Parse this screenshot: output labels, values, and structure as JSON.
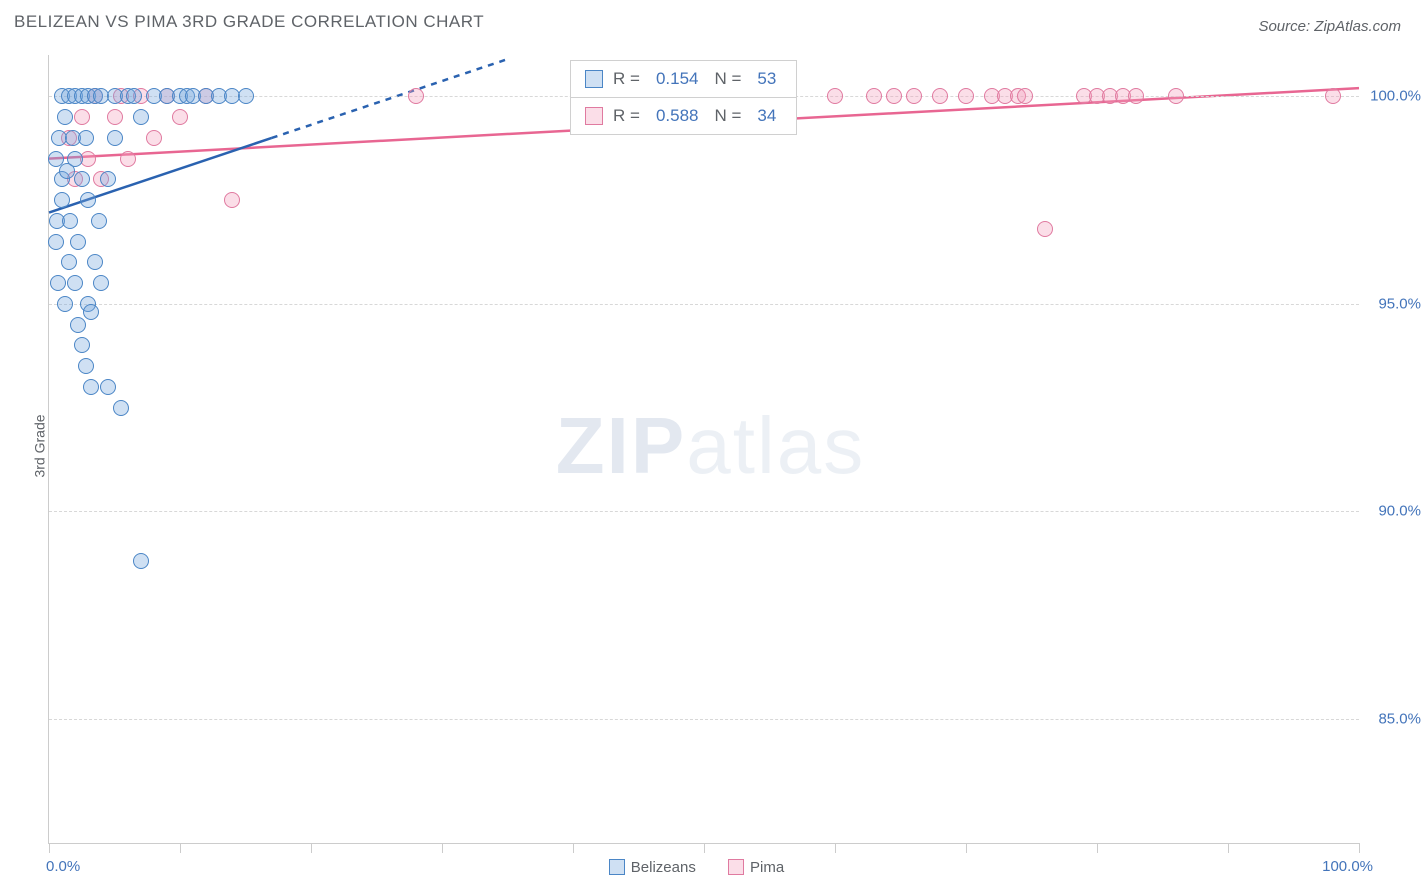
{
  "title": "BELIZEAN VS PIMA 3RD GRADE CORRELATION CHART",
  "source": "Source: ZipAtlas.com",
  "ylabel": "3rd Grade",
  "watermark_bold": "ZIP",
  "watermark_light": "atlas",
  "colors": {
    "blue_fill": "rgba(117,165,222,0.35)",
    "blue_stroke": "#4b86c6",
    "blue_line": "#2a62b0",
    "pink_fill": "rgba(244,160,188,0.35)",
    "pink_stroke": "#e07aa0",
    "pink_line": "#e86692",
    "grid": "#d8d8d8",
    "text": "#5f6368",
    "axis_label": "#4374ba"
  },
  "chart": {
    "type": "scatter",
    "xlim": [
      0,
      100
    ],
    "ylim": [
      82,
      101
    ],
    "xtick_step": 10,
    "xtick_labels": {
      "0": "0.0%",
      "100": "100.0%"
    },
    "ytick_values": [
      85,
      90,
      95,
      100
    ],
    "ytick_labels": [
      "85.0%",
      "90.0%",
      "95.0%",
      "100.0%"
    ],
    "marker_radius": 8
  },
  "series_blue": {
    "name": "Belizeans",
    "R": "0.154",
    "N": "53",
    "regression_solid": {
      "x1": 0,
      "y1": 97.2,
      "x2": 17,
      "y2": 99.0
    },
    "regression_dashed": {
      "x1": 17,
      "y1": 99.0,
      "x2": 35,
      "y2": 100.9
    },
    "points": [
      [
        0.5,
        98.5
      ],
      [
        0.5,
        96.5
      ],
      [
        0.6,
        97.0
      ],
      [
        0.7,
        95.5
      ],
      [
        0.8,
        99.0
      ],
      [
        1.0,
        100.0
      ],
      [
        1.0,
        98.0
      ],
      [
        1.0,
        97.5
      ],
      [
        1.2,
        99.5
      ],
      [
        1.2,
        95.0
      ],
      [
        1.4,
        98.2
      ],
      [
        1.5,
        100.0
      ],
      [
        1.5,
        96.0
      ],
      [
        1.6,
        97.0
      ],
      [
        1.8,
        99.0
      ],
      [
        2.0,
        100.0
      ],
      [
        2.0,
        98.5
      ],
      [
        2.0,
        95.5
      ],
      [
        2.2,
        96.5
      ],
      [
        2.2,
        94.5
      ],
      [
        2.5,
        98.0
      ],
      [
        2.5,
        100.0
      ],
      [
        2.5,
        94.0
      ],
      [
        2.8,
        99.0
      ],
      [
        2.8,
        93.5
      ],
      [
        3.0,
        100.0
      ],
      [
        3.0,
        97.5
      ],
      [
        3.0,
        95.0
      ],
      [
        3.2,
        94.8
      ],
      [
        3.2,
        93.0
      ],
      [
        3.5,
        100.0
      ],
      [
        3.5,
        96.0
      ],
      [
        3.8,
        97.0
      ],
      [
        4.0,
        100.0
      ],
      [
        4.0,
        95.5
      ],
      [
        4.5,
        98.0
      ],
      [
        4.5,
        93.0
      ],
      [
        5.0,
        99.0
      ],
      [
        5.0,
        100.0
      ],
      [
        5.5,
        92.5
      ],
      [
        6.0,
        100.0
      ],
      [
        6.5,
        100.0
      ],
      [
        7.0,
        99.5
      ],
      [
        7.0,
        88.8
      ],
      [
        8.0,
        100.0
      ],
      [
        9.0,
        100.0
      ],
      [
        10.0,
        100.0
      ],
      [
        10.5,
        100.0
      ],
      [
        11.0,
        100.0
      ],
      [
        12.0,
        100.0
      ],
      [
        13.0,
        100.0
      ],
      [
        14.0,
        100.0
      ],
      [
        15.0,
        100.0
      ]
    ]
  },
  "series_pink": {
    "name": "Pima",
    "R": "0.588",
    "N": "34",
    "regression": {
      "x1": 0,
      "y1": 98.5,
      "x2": 100,
      "y2": 100.2
    },
    "points": [
      [
        1.5,
        99.0
      ],
      [
        2.0,
        98.0
      ],
      [
        2.5,
        99.5
      ],
      [
        3.0,
        98.5
      ],
      [
        3.5,
        100.0
      ],
      [
        4.0,
        98.0
      ],
      [
        5.0,
        99.5
      ],
      [
        5.5,
        100.0
      ],
      [
        6.0,
        98.5
      ],
      [
        7.0,
        100.0
      ],
      [
        8.0,
        99.0
      ],
      [
        9.0,
        100.0
      ],
      [
        10.0,
        99.5
      ],
      [
        12.0,
        100.0
      ],
      [
        14.0,
        97.5
      ],
      [
        28.0,
        100.0
      ],
      [
        60.0,
        100.0
      ],
      [
        63.0,
        100.0
      ],
      [
        66.0,
        100.0
      ],
      [
        68.0,
        100.0
      ],
      [
        70.0,
        100.0
      ],
      [
        72.0,
        100.0
      ],
      [
        73.0,
        100.0
      ],
      [
        74.0,
        100.0
      ],
      [
        74.5,
        100.0
      ],
      [
        76.0,
        96.8
      ],
      [
        79.0,
        100.0
      ],
      [
        80.0,
        100.0
      ],
      [
        81.0,
        100.0
      ],
      [
        82.0,
        100.0
      ],
      [
        83.0,
        100.0
      ],
      [
        86.0,
        100.0
      ],
      [
        98.0,
        100.0
      ],
      [
        64.5,
        100.0
      ]
    ]
  },
  "legend_bottom": {
    "blue": "Belizeans",
    "pink": "Pima"
  }
}
